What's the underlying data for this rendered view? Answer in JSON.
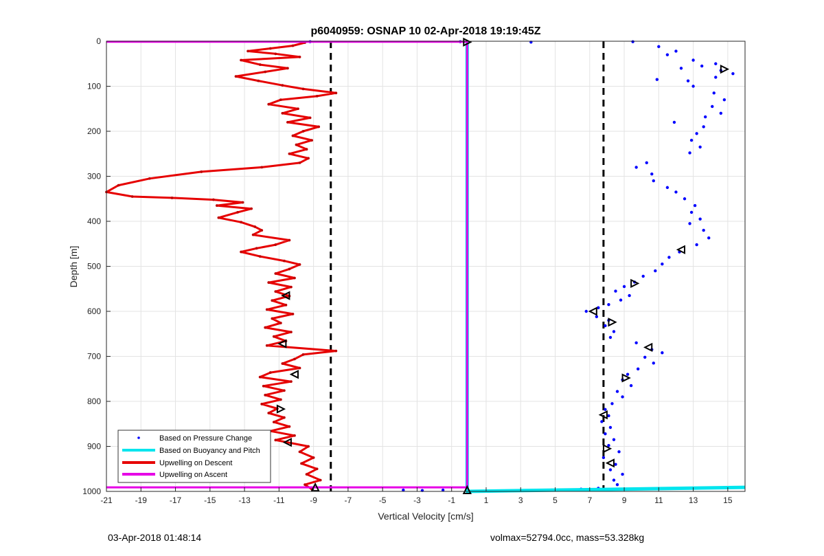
{
  "chart_data": {
    "type": "scatter",
    "title": "p6040959: OSNAP 10 02-Apr-2018 19:19:45Z",
    "xlabel": "Vertical Velocity [cm/s]",
    "ylabel": "Depth [m]",
    "xlim": [
      -21,
      16
    ],
    "ylim": [
      0,
      1000
    ],
    "y_reversed": true,
    "grid": true,
    "x_ticks": [
      -21,
      -19,
      -17,
      -15,
      -13,
      -11,
      -9,
      -7,
      -5,
      -3,
      -1,
      1,
      3,
      5,
      7,
      9,
      11,
      13,
      15
    ],
    "y_ticks": [
      0,
      100,
      200,
      300,
      400,
      500,
      600,
      700,
      800,
      900,
      1000
    ],
    "legend_position": "bottom-left",
    "series": [
      {
        "name": "Based on Pressure Change",
        "style": "dots",
        "color": "#0000ff",
        "points": [
          [
            3.6,
            2
          ],
          [
            9.5,
            1
          ],
          [
            11,
            12
          ],
          [
            12,
            22
          ],
          [
            11.5,
            30
          ],
          [
            13,
            42
          ],
          [
            13.5,
            55
          ],
          [
            14.3,
            50
          ],
          [
            12.3,
            60
          ],
          [
            14.6,
            65
          ],
          [
            15.3,
            72
          ],
          [
            10.9,
            85
          ],
          [
            12.7,
            88
          ],
          [
            14.3,
            80
          ],
          [
            13,
            100
          ],
          [
            14.2,
            115
          ],
          [
            14.8,
            130
          ],
          [
            14.1,
            145
          ],
          [
            14.6,
            160
          ],
          [
            13.7,
            168
          ],
          [
            11.9,
            180
          ],
          [
            13.6,
            190
          ],
          [
            13.2,
            205
          ],
          [
            12.9,
            220
          ],
          [
            13.4,
            235
          ],
          [
            12.8,
            248
          ],
          [
            10.3,
            270
          ],
          [
            9.7,
            280
          ],
          [
            10.6,
            295
          ],
          [
            10.7,
            310
          ],
          [
            11.5,
            325
          ],
          [
            12,
            335
          ],
          [
            12.5,
            350
          ],
          [
            13.1,
            365
          ],
          [
            12.9,
            380
          ],
          [
            13.4,
            395
          ],
          [
            12.8,
            405
          ],
          [
            13.6,
            420
          ],
          [
            13.9,
            437
          ],
          [
            13.2,
            452
          ],
          [
            12.2,
            468
          ],
          [
            11.6,
            480
          ],
          [
            11.2,
            495
          ],
          [
            10.8,
            510
          ],
          [
            10.1,
            522
          ],
          [
            9.6,
            535
          ],
          [
            9,
            545
          ],
          [
            8.5,
            555
          ],
          [
            9.3,
            565
          ],
          [
            8.8,
            575
          ],
          [
            8.1,
            585
          ],
          [
            7.5,
            592
          ],
          [
            6.8,
            600
          ],
          [
            7.4,
            612
          ],
          [
            8.1,
            620
          ],
          [
            7.9,
            632
          ],
          [
            8.4,
            645
          ],
          [
            8.2,
            658
          ],
          [
            9.7,
            670
          ],
          [
            10.6,
            685
          ],
          [
            11.2,
            692
          ],
          [
            10.2,
            702
          ],
          [
            10.7,
            715
          ],
          [
            9.8,
            728
          ],
          [
            9.2,
            740
          ],
          [
            8.9,
            752
          ],
          [
            9.4,
            765
          ],
          [
            8.6,
            778
          ],
          [
            8.9,
            790
          ],
          [
            8.3,
            805
          ],
          [
            7.9,
            818
          ],
          [
            8.1,
            832
          ],
          [
            7.7,
            845
          ],
          [
            8.2,
            858
          ],
          [
            7.9,
            872
          ],
          [
            8.4,
            885
          ],
          [
            8.1,
            898
          ],
          [
            8.7,
            912
          ],
          [
            7.8,
            925
          ],
          [
            8.5,
            940
          ],
          [
            8.2,
            952
          ],
          [
            8.9,
            962
          ],
          [
            8.4,
            975
          ],
          [
            8.6,
            985
          ],
          [
            7.5,
            993
          ],
          [
            6.5,
            995
          ],
          [
            4.8,
            997
          ],
          [
            3.2,
            998
          ],
          [
            1.2,
            999
          ],
          [
            -1.5,
            997
          ],
          [
            -2.7,
            998
          ],
          [
            -3.8,
            997
          ],
          [
            -0.5,
            1
          ],
          [
            -9.2,
            1
          ]
        ]
      },
      {
        "name": "Based on Buoyancy and Pitch",
        "style": "line",
        "color": "#00e5ee",
        "points": [
          [
            -0.1,
            0
          ],
          [
            -0.1,
            1000
          ],
          [
            16,
            991
          ]
        ]
      },
      {
        "name": "Upwelling on Descent",
        "style": "line",
        "color": "#e60000",
        "points": [
          [
            -9.5,
            3
          ],
          [
            -10.2,
            10
          ],
          [
            -11.5,
            16
          ],
          [
            -12.8,
            22
          ],
          [
            -11.2,
            28
          ],
          [
            -9.8,
            35
          ],
          [
            -13.2,
            42
          ],
          [
            -12.1,
            52
          ],
          [
            -10.5,
            60
          ],
          [
            -11.8,
            68
          ],
          [
            -13.5,
            78
          ],
          [
            -12.2,
            88
          ],
          [
            -10.8,
            98
          ],
          [
            -9.6,
            106
          ],
          [
            -7.7,
            115
          ],
          [
            -8.8,
            122
          ],
          [
            -10.9,
            130
          ],
          [
            -11.6,
            140
          ],
          [
            -9.9,
            150
          ],
          [
            -10.8,
            160
          ],
          [
            -9.2,
            170
          ],
          [
            -10.5,
            180
          ],
          [
            -8.7,
            190
          ],
          [
            -9.6,
            200
          ],
          [
            -10.2,
            210
          ],
          [
            -9.1,
            220
          ],
          [
            -10,
            230
          ],
          [
            -9.4,
            240
          ],
          [
            -10.4,
            250
          ],
          [
            -9.3,
            260
          ],
          [
            -9.8,
            270
          ],
          [
            -12,
            280
          ],
          [
            -15.5,
            290
          ],
          [
            -18.5,
            305
          ],
          [
            -20.3,
            320
          ],
          [
            -21,
            335
          ],
          [
            -19.5,
            345
          ],
          [
            -17.2,
            348
          ],
          [
            -14.8,
            352
          ],
          [
            -13.1,
            358
          ],
          [
            -14.6,
            365
          ],
          [
            -12.6,
            372
          ],
          [
            -13.4,
            380
          ],
          [
            -14.5,
            392
          ],
          [
            -13.2,
            402
          ],
          [
            -12.4,
            412
          ],
          [
            -12,
            420
          ],
          [
            -12.5,
            430
          ],
          [
            -10.4,
            442
          ],
          [
            -11.2,
            452
          ],
          [
            -12.3,
            460
          ],
          [
            -13.2,
            468
          ],
          [
            -12.1,
            478
          ],
          [
            -10.7,
            488
          ],
          [
            -9.8,
            496
          ],
          [
            -10.4,
            506
          ],
          [
            -11.2,
            516
          ],
          [
            -10.1,
            526
          ],
          [
            -11.6,
            536
          ],
          [
            -10.3,
            546
          ],
          [
            -11.2,
            556
          ],
          [
            -10.4,
            566
          ],
          [
            -11.4,
            576
          ],
          [
            -10.6,
            586
          ],
          [
            -11.7,
            596
          ],
          [
            -10.2,
            606
          ],
          [
            -11.4,
            616
          ],
          [
            -10.9,
            626
          ],
          [
            -11.8,
            636
          ],
          [
            -10.3,
            646
          ],
          [
            -11.3,
            656
          ],
          [
            -10.6,
            666
          ],
          [
            -11.7,
            676
          ],
          [
            -7.7,
            688
          ],
          [
            -9.6,
            696
          ],
          [
            -10.1,
            706
          ],
          [
            -10.8,
            716
          ],
          [
            -9.8,
            726
          ],
          [
            -11.5,
            736
          ],
          [
            -12.1,
            746
          ],
          [
            -10.3,
            756
          ],
          [
            -11.9,
            766
          ],
          [
            -10.7,
            776
          ],
          [
            -11.8,
            786
          ],
          [
            -10.9,
            796
          ],
          [
            -12,
            806
          ],
          [
            -11.1,
            816
          ],
          [
            -11.6,
            826
          ],
          [
            -10.7,
            836
          ],
          [
            -11.3,
            846
          ],
          [
            -10.4,
            856
          ],
          [
            -11.5,
            866
          ],
          [
            -10.1,
            876
          ],
          [
            -11.2,
            886
          ],
          [
            -9.3,
            900
          ],
          [
            -9.8,
            912
          ],
          [
            -9,
            925
          ],
          [
            -9.7,
            938
          ],
          [
            -8.8,
            950
          ],
          [
            -9.4,
            962
          ],
          [
            -8.6,
            975
          ],
          [
            -9.5,
            985
          ],
          [
            -9.1,
            995
          ]
        ]
      },
      {
        "name": "Upwelling on Ascent",
        "style": "line",
        "color": "#e600e6",
        "points": [
          [
            -21,
            1
          ],
          [
            -0.1,
            1
          ],
          [
            -0.1,
            991
          ],
          [
            -21,
            991
          ]
        ]
      }
    ],
    "reference_lines": [
      {
        "x": -8,
        "style": "dashed",
        "color": "#000000"
      },
      {
        "x": 7.8,
        "style": "dashed",
        "color": "#000000"
      }
    ],
    "markers": [
      {
        "x": -0.1,
        "y": 2,
        "symbol": "triangle-right"
      },
      {
        "x": 14.8,
        "y": 62,
        "symbol": "triangle-right"
      },
      {
        "x": -10.6,
        "y": 565,
        "symbol": "triangle-left"
      },
      {
        "x": 12.3,
        "y": 463,
        "symbol": "triangle-left"
      },
      {
        "x": 9.6,
        "y": 538,
        "symbol": "triangle-right"
      },
      {
        "x": 7.2,
        "y": 600,
        "symbol": "triangle-left"
      },
      {
        "x": 8.3,
        "y": 624,
        "symbol": "triangle-right"
      },
      {
        "x": -10.8,
        "y": 672,
        "symbol": "triangle-left"
      },
      {
        "x": 10.4,
        "y": 680,
        "symbol": "triangle-left"
      },
      {
        "x": -10.1,
        "y": 740,
        "symbol": "triangle-left"
      },
      {
        "x": 9.1,
        "y": 748,
        "symbol": "triangle-right"
      },
      {
        "x": -10.9,
        "y": 817,
        "symbol": "triangle-right"
      },
      {
        "x": 7.8,
        "y": 830,
        "symbol": "triangle-left"
      },
      {
        "x": -10.5,
        "y": 891,
        "symbol": "triangle-left"
      },
      {
        "x": 8,
        "y": 905,
        "symbol": "triangle-right"
      },
      {
        "x": 8.2,
        "y": 937,
        "symbol": "triangle-left"
      },
      {
        "x": -8.9,
        "y": 991,
        "symbol": "triangle-up"
      },
      {
        "x": -0.1,
        "y": 997,
        "symbol": "triangle-up"
      }
    ]
  },
  "footer": {
    "timestamp": "03-Apr-2018 01:48:14",
    "specs": "volmax=52794.0cc, mass=53.328kg"
  }
}
